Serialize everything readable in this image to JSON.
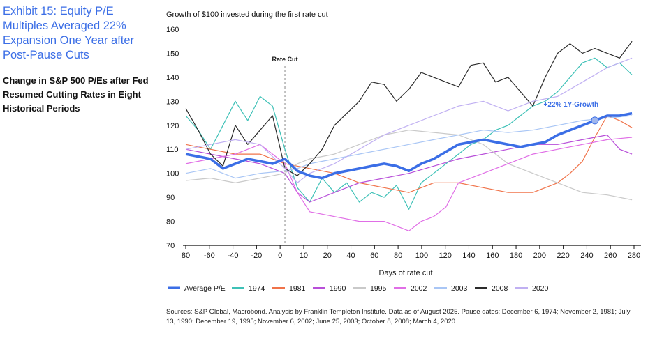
{
  "header": {
    "title": "Exhibit 15: Equity P/E Multiples Averaged 22% Expansion One Year after Post-Pause Cuts",
    "subtitle": "Change in S&P 500 P/Es after Fed Resumed Cutting Rates in Eight Historical Periods"
  },
  "colors": {
    "accent": "#3b6ee6",
    "average": "#3b6ee6",
    "s1974": "#3ec1b7",
    "s1981": "#f0734a",
    "s1990": "#b84fd9",
    "s1995": "#c9c9c9",
    "s2002": "#e06ee6",
    "s2003": "#a9c6f5",
    "s2008": "#2b2b2b",
    "s2020": "#c0b0f2"
  },
  "footer": {
    "source": "Sources: S&P Global, Macrobond. Analysis by Franklin Templeton Institute. Data as of August 2025. Pause dates: December 6, 1974; November 2, 1981; July 13, 1990; December 19, 1995; November 6, 2002; June 25, 2003; October 8, 2008; March 4, 2020."
  },
  "chart_data": {
    "type": "line",
    "title": "Growth of $100 invested during the first rate cut",
    "xlabel": "Days of rate cut",
    "ylabel": "",
    "xlim": [
      -80,
      285
    ],
    "ylim": [
      70,
      160
    ],
    "x_ticks": [
      "80",
      "-60",
      "-40",
      "-20",
      "0",
      "10",
      "20",
      "40",
      "60",
      "80",
      "100",
      "120",
      "140",
      "160",
      "180",
      "200",
      "220",
      "240",
      "260",
      "280"
    ],
    "y_ticks": [
      70,
      80,
      90,
      100,
      110,
      120,
      130,
      140,
      150,
      160
    ],
    "grid": false,
    "legend_position": "bottom",
    "annotations": {
      "rate_cut_label": "Rate Cut",
      "rate_cut_x": 0,
      "growth_label": "+22% 1Y-Growth",
      "growth_point": {
        "x": 250,
        "y": 122
      }
    },
    "series": [
      {
        "name": "Average P/E",
        "color_key": "average",
        "x": [
          -80,
          -60,
          -50,
          -40,
          -30,
          -20,
          -10,
          0,
          10,
          20,
          30,
          40,
          50,
          60,
          70,
          80,
          90,
          100,
          110,
          120,
          130,
          140,
          150,
          160,
          170,
          180,
          190,
          200,
          210,
          220,
          230,
          240,
          250,
          260,
          270,
          280
        ],
        "y": [
          108,
          106,
          102,
          104,
          106,
          105,
          104,
          106,
          101,
          99,
          98,
          100,
          101,
          102,
          103,
          104,
          103,
          101,
          104,
          106,
          109,
          112,
          113,
          114,
          113,
          112,
          111,
          112,
          113,
          116,
          118,
          120,
          122,
          124,
          124,
          125
        ]
      },
      {
        "name": "1974",
        "color_key": "s1974",
        "x": [
          -80,
          -70,
          -60,
          -50,
          -40,
          -30,
          -20,
          -10,
          0,
          10,
          20,
          30,
          40,
          50,
          60,
          70,
          80,
          90,
          100,
          110,
          120,
          130,
          140,
          150,
          160,
          170,
          180,
          190,
          200,
          210,
          220,
          230,
          240,
          250,
          260,
          270,
          280
        ],
        "y": [
          124,
          118,
          110,
          120,
          130,
          122,
          132,
          128,
          110,
          94,
          88,
          98,
          92,
          96,
          88,
          92,
          90,
          95,
          85,
          96,
          100,
          104,
          108,
          112,
          114,
          118,
          120,
          124,
          128,
          130,
          134,
          140,
          146,
          148,
          144,
          146,
          141
        ]
      },
      {
        "name": "1981",
        "color_key": "s1981",
        "x": [
          -80,
          -60,
          -40,
          -20,
          0,
          10,
          20,
          40,
          60,
          80,
          100,
          120,
          140,
          160,
          180,
          200,
          220,
          230,
          240,
          250,
          260,
          270,
          280
        ],
        "y": [
          112,
          110,
          108,
          108,
          104,
          103,
          102,
          100,
          96,
          94,
          92,
          96,
          96,
          94,
          92,
          92,
          96,
          100,
          105,
          115,
          124,
          122,
          119
        ]
      },
      {
        "name": "1990",
        "color_key": "s1990",
        "x": [
          -80,
          -60,
          -40,
          -20,
          0,
          10,
          20,
          40,
          60,
          80,
          100,
          120,
          140,
          160,
          180,
          200,
          220,
          240,
          260,
          270,
          280
        ],
        "y": [
          110,
          108,
          106,
          104,
          100,
          92,
          88,
          92,
          96,
          98,
          100,
          103,
          106,
          108,
          110,
          112,
          112,
          114,
          116,
          110,
          108
        ]
      },
      {
        "name": "1995",
        "color_key": "s1995",
        "x": [
          -80,
          -60,
          -40,
          -20,
          0,
          10,
          20,
          40,
          60,
          80,
          100,
          120,
          140,
          160,
          180,
          200,
          220,
          240,
          260,
          280
        ],
        "y": [
          97,
          98,
          96,
          98,
          100,
          104,
          106,
          108,
          112,
          116,
          118,
          117,
          116,
          112,
          104,
          100,
          96,
          92,
          91,
          89
        ]
      },
      {
        "name": "2002",
        "color_key": "s2002",
        "x": [
          -80,
          -60,
          -40,
          -20,
          0,
          10,
          20,
          40,
          60,
          80,
          90,
          100,
          110,
          120,
          130,
          140,
          160,
          180,
          200,
          220,
          240,
          260,
          280
        ],
        "y": [
          104,
          106,
          108,
          112,
          104,
          92,
          84,
          82,
          80,
          80,
          78,
          76,
          80,
          82,
          86,
          96,
          100,
          104,
          108,
          110,
          112,
          114,
          115
        ]
      },
      {
        "name": "2003",
        "color_key": "s2003",
        "x": [
          -80,
          -60,
          -40,
          -20,
          0,
          10,
          20,
          40,
          60,
          80,
          100,
          120,
          140,
          160,
          180,
          200,
          220,
          240,
          260,
          280
        ],
        "y": [
          100,
          102,
          98,
          100,
          101,
          102,
          104,
          106,
          108,
          110,
          112,
          114,
          116,
          118,
          117,
          118,
          120,
          122,
          123,
          124
        ]
      },
      {
        "name": "2008",
        "color_key": "s2008",
        "x": [
          -80,
          -70,
          -60,
          -50,
          -40,
          -30,
          -20,
          -10,
          0,
          10,
          20,
          30,
          40,
          50,
          60,
          70,
          80,
          90,
          100,
          110,
          120,
          130,
          140,
          150,
          160,
          170,
          180,
          190,
          200,
          210,
          220,
          230,
          240,
          250,
          260,
          270,
          280
        ],
        "y": [
          127,
          118,
          108,
          103,
          120,
          112,
          118,
          124,
          102,
          99,
          104,
          110,
          120,
          125,
          130,
          138,
          137,
          130,
          135,
          142,
          140,
          138,
          136,
          145,
          146,
          138,
          140,
          134,
          128,
          140,
          150,
          154,
          150,
          152,
          150,
          148,
          155
        ]
      },
      {
        "name": "2020",
        "color_key": "s2020",
        "x": [
          -80,
          -60,
          -40,
          -20,
          0,
          10,
          20,
          40,
          60,
          80,
          100,
          120,
          140,
          160,
          180,
          200,
          220,
          240,
          260,
          280
        ],
        "y": [
          110,
          112,
          114,
          112,
          102,
          96,
          100,
          104,
          110,
          116,
          120,
          124,
          128,
          130,
          126,
          130,
          132,
          138,
          144,
          148
        ]
      }
    ]
  }
}
